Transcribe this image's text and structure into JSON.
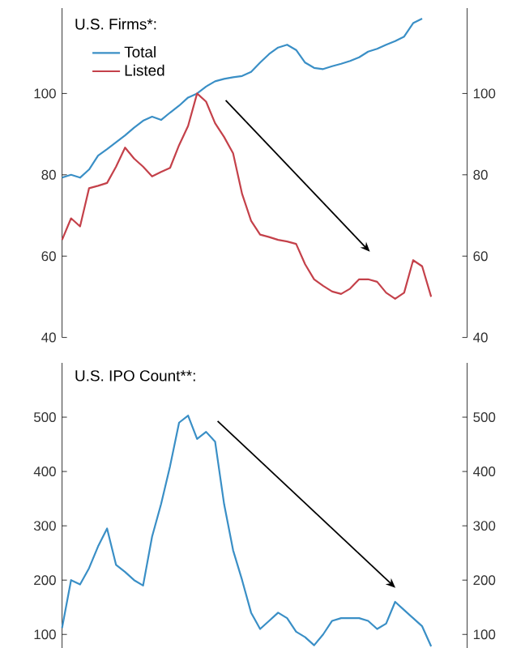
{
  "chart_data": [
    {
      "type": "line",
      "legend_title": "U.S. Firms*:",
      "legend": "top left",
      "tick_labels": "y",
      "categories": [
        null,
        null,
        null,
        null,
        null,
        null,
        null,
        null,
        null,
        null,
        null,
        null,
        null,
        null,
        null,
        null,
        null,
        null,
        null,
        null,
        null,
        null,
        null,
        null,
        null,
        null,
        null,
        null,
        null,
        null,
        null,
        null,
        null,
        null,
        null,
        null,
        null,
        null,
        null,
        null,
        null,
        null,
        null,
        null,
        null,
        null
      ],
      "series": [
        {
          "name": "Total",
          "color": "#3a8fc6",
          "values": [
            79.3,
            80,
            79.3,
            81.3,
            84.7,
            86.3,
            88,
            89.7,
            91.6,
            93.3,
            94.3,
            93.5,
            95.3,
            97,
            99,
            100,
            101.7,
            103,
            103.6,
            104,
            104.3,
            105.3,
            107.6,
            109.7,
            111.3,
            112,
            110.7,
            107.6,
            106.3,
            106,
            106.7,
            107.3,
            108,
            108.9,
            110.3,
            111,
            112,
            112.9,
            114,
            117.3,
            118.4,
            null,
            null,
            null,
            null,
            null
          ]
        },
        {
          "name": "Listed",
          "color": "#c4414a",
          "values": [
            64,
            69.3,
            67.3,
            76.7,
            77.3,
            78,
            82,
            86.7,
            84,
            82,
            79.6,
            80.7,
            81.7,
            87.3,
            92,
            100,
            98,
            92.7,
            89.3,
            85.3,
            75.3,
            68.7,
            65.3,
            64.7,
            64,
            63.6,
            63,
            58,
            54.3,
            52.7,
            51.3,
            50.7,
            52,
            54.3,
            54.3,
            53.7,
            51,
            49.5,
            51,
            59,
            57.5,
            50,
            null,
            null,
            null,
            null
          ]
        }
      ],
      "ylim": [
        40,
        121
      ],
      "yticks": [
        40,
        60,
        80,
        100
      ],
      "y2lim": [
        40,
        121
      ],
      "y2ticks": [
        40,
        60,
        80,
        100
      ]
    },
    {
      "type": "line",
      "title": "U.S. IPO Count**:",
      "tick_labels": "y",
      "categories": [
        null,
        null,
        null,
        null,
        null,
        null,
        null,
        null,
        null,
        null,
        null,
        null,
        null,
        null,
        null,
        null,
        null,
        null,
        null,
        null,
        null,
        null,
        null,
        null,
        null,
        null,
        null,
        null,
        null,
        null,
        null,
        null,
        null,
        null,
        null,
        null,
        null,
        null,
        null,
        null,
        null,
        null,
        null,
        null,
        null,
        null
      ],
      "series": [
        {
          "color": "#3a8fc6",
          "values": [
            112,
            200,
            192,
            222,
            262,
            295,
            228,
            215,
            200,
            190,
            280,
            340,
            410,
            490,
            503,
            460,
            473,
            455,
            340,
            255,
            200,
            140,
            110,
            125,
            140,
            130,
            105,
            95,
            80,
            100,
            125,
            130,
            130,
            130,
            125,
            110,
            120,
            160,
            145,
            130,
            115,
            78,
            null,
            null,
            null,
            null
          ]
        }
      ],
      "ylim": [
        75,
        600
      ],
      "yticks": [
        100,
        200,
        300,
        400,
        500
      ],
      "y2lim": [
        75,
        600
      ],
      "y2ticks": [
        100,
        200,
        300,
        400,
        500
      ]
    }
  ]
}
